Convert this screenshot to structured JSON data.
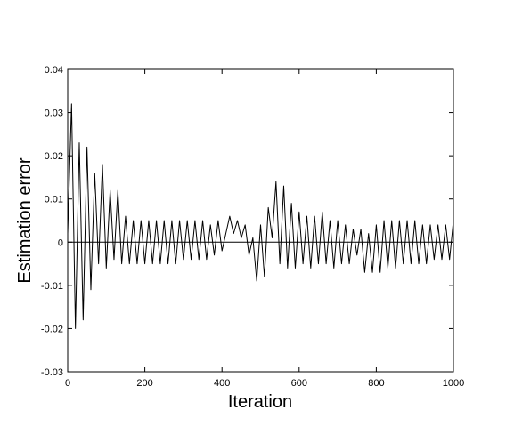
{
  "chart_data": {
    "type": "line",
    "xlabel": "Iteration",
    "ylabel": "Estimation error",
    "x": [
      0,
      10,
      20,
      30,
      40,
      50,
      60,
      70,
      80,
      90,
      100,
      110,
      120,
      130,
      140,
      150,
      160,
      170,
      180,
      190,
      200,
      210,
      220,
      230,
      240,
      250,
      260,
      270,
      280,
      290,
      300,
      310,
      320,
      330,
      340,
      350,
      360,
      370,
      380,
      390,
      400,
      410,
      420,
      430,
      440,
      450,
      460,
      470,
      480,
      490,
      500,
      510,
      520,
      530,
      540,
      550,
      560,
      570,
      580,
      590,
      600,
      610,
      620,
      630,
      640,
      650,
      660,
      670,
      680,
      690,
      700,
      710,
      720,
      730,
      740,
      750,
      760,
      770,
      780,
      790,
      800,
      810,
      820,
      830,
      840,
      850,
      860,
      870,
      880,
      890,
      900,
      910,
      920,
      930,
      940,
      950,
      960,
      970,
      980,
      990,
      1000
    ],
    "series": [
      {
        "color": "#000000",
        "values": [
          0.002,
          0.032,
          -0.02,
          0.023,
          -0.018,
          0.022,
          -0.011,
          0.016,
          -0.005,
          0.018,
          -0.006,
          0.012,
          -0.004,
          0.012,
          -0.005,
          0.006,
          -0.005,
          0.005,
          -0.005,
          0.005,
          -0.005,
          0.005,
          -0.005,
          0.005,
          -0.005,
          0.005,
          -0.005,
          0.005,
          -0.005,
          0.005,
          -0.004,
          0.005,
          -0.004,
          0.005,
          -0.004,
          0.005,
          -0.004,
          0.004,
          -0.003,
          0.005,
          -0.002,
          0.002,
          0.006,
          0.002,
          0.005,
          0.001,
          0.004,
          -0.003,
          0.001,
          -0.009,
          0.004,
          -0.008,
          0.008,
          0.001,
          0.014,
          -0.005,
          0.013,
          -0.006,
          0.009,
          -0.006,
          0.007,
          -0.005,
          0.006,
          -0.006,
          0.006,
          -0.005,
          0.007,
          -0.005,
          0.005,
          -0.006,
          0.005,
          -0.005,
          0.004,
          -0.005,
          0.003,
          -0.003,
          0.003,
          -0.007,
          0.002,
          -0.007,
          0.004,
          -0.007,
          0.005,
          -0.006,
          0.005,
          -0.006,
          0.005,
          -0.005,
          0.005,
          -0.005,
          0.005,
          -0.005,
          0.004,
          -0.005,
          0.004,
          -0.004,
          0.004,
          -0.004,
          0.004,
          -0.004,
          0.005
        ]
      }
    ],
    "reference_line": 0,
    "xlim": [
      0,
      1000
    ],
    "xticks": [
      0,
      200,
      400,
      600,
      800,
      1000
    ],
    "ylim": [
      -0.03,
      0.04
    ],
    "yticks": [
      -0.03,
      -0.02,
      -0.01,
      0,
      0.01,
      0.02,
      0.03,
      0.04
    ]
  }
}
